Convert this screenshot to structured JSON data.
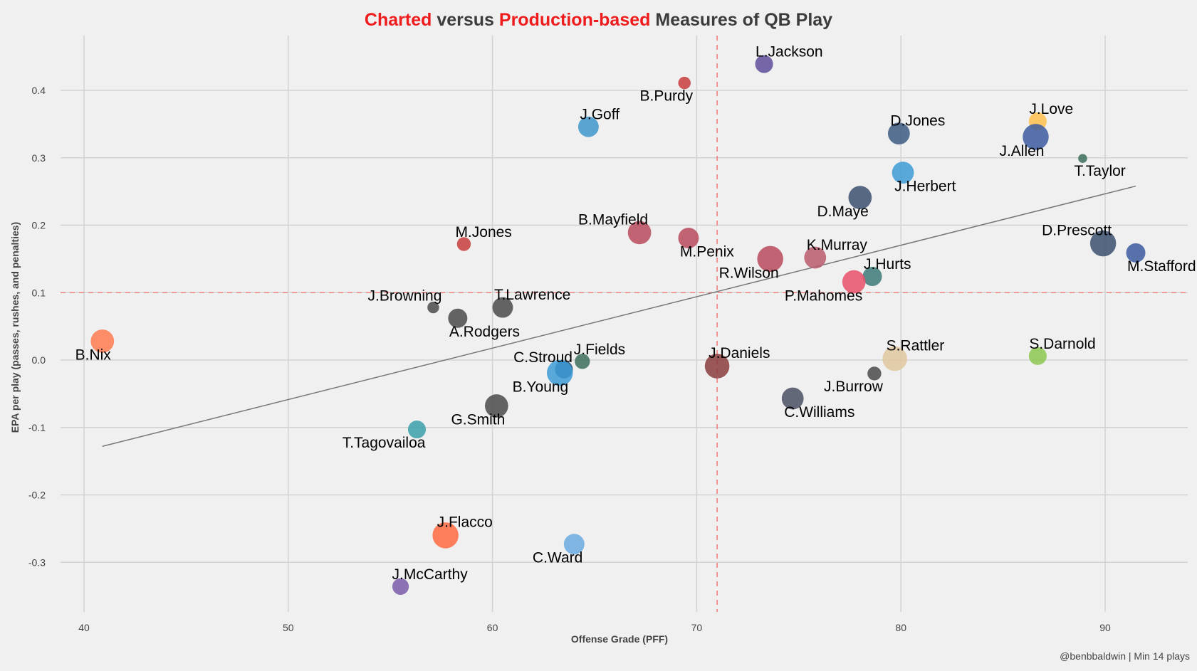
{
  "chart_data": {
    "type": "scatter",
    "title_parts": [
      {
        "text": "Charted",
        "highlight": true
      },
      {
        "text": " versus ",
        "highlight": false
      },
      {
        "text": "Production-based",
        "highlight": true
      },
      {
        "text": " Measures of QB Play",
        "highlight": false
      }
    ],
    "xlabel": "Offense Grade (PFF)",
    "ylabel": "EPA per play (passes, rushes, and penalties)",
    "caption": "@benbbaldwin | Min 14 plays",
    "xlim": [
      38.7,
      94.5
    ],
    "ylim": [
      -0.37,
      0.475
    ],
    "xticks": [
      40,
      50,
      60,
      70,
      80,
      90
    ],
    "yticks": [
      0.4,
      0.3,
      0.2,
      0.1,
      0.0,
      -0.1,
      -0.2,
      -0.3
    ],
    "ytick_labels": [
      "0.4",
      "0.3",
      "0.2",
      "0.1",
      "0.0",
      "-0.1",
      "-0.2",
      "-0.3"
    ],
    "grid": true,
    "reference_lines": {
      "x_mean": 71.0,
      "y_mean": 0.1,
      "color": "#f08080"
    },
    "trend_line": {
      "x": [
        40.9,
        91.5
      ],
      "y": [
        -0.128,
        0.258
      ],
      "color": "#777777"
    },
    "colors": {
      "highlight": "#ee1c1c",
      "text": "#3c3c3c",
      "background": "#f0f0f0"
    },
    "points": [
      {
        "name": "L.Jackson",
        "x": 73.3,
        "y": 0.439,
        "size": 0.45,
        "color": "#5e4e9a"
      },
      {
        "name": "B.Purdy",
        "x": 69.4,
        "y": 0.411,
        "size": 0.25,
        "color": "#c83c3c"
      },
      {
        "name": "J.Goff",
        "x": 64.7,
        "y": 0.346,
        "size": 0.55,
        "color": "#3f96cc"
      },
      {
        "name": "D.Jones",
        "x": 79.9,
        "y": 0.336,
        "size": 0.6,
        "color": "#3c5a82"
      },
      {
        "name": "J.Love",
        "x": 86.7,
        "y": 0.354,
        "size": 0.45,
        "color": "#ffc04c"
      },
      {
        "name": "J.Allen",
        "x": 86.6,
        "y": 0.331,
        "size": 0.75,
        "color": "#3c5aa0"
      },
      {
        "name": "T.Taylor",
        "x": 88.9,
        "y": 0.299,
        "size": 0.12,
        "color": "#3c6e5a"
      },
      {
        "name": "J.Herbert",
        "x": 80.1,
        "y": 0.278,
        "size": 0.6,
        "color": "#3d9bd6"
      },
      {
        "name": "D.Maye",
        "x": 78.0,
        "y": 0.241,
        "size": 0.65,
        "color": "#3c5070"
      },
      {
        "name": "B.Mayfield",
        "x": 67.2,
        "y": 0.189,
        "size": 0.65,
        "color": "#b84a5c"
      },
      {
        "name": "M.Penix",
        "x": 69.6,
        "y": 0.181,
        "size": 0.55,
        "color": "#b84a5c"
      },
      {
        "name": "M.Jones",
        "x": 58.6,
        "y": 0.172,
        "size": 0.3,
        "color": "#c83c3c"
      },
      {
        "name": "D.Prescott",
        "x": 89.9,
        "y": 0.173,
        "size": 0.75,
        "color": "#3c5070"
      },
      {
        "name": "M.Stafford",
        "x": 91.5,
        "y": 0.159,
        "size": 0.5,
        "color": "#3c5aa0"
      },
      {
        "name": "R.Wilson",
        "x": 73.6,
        "y": 0.15,
        "size": 0.75,
        "color": "#b84a5c"
      },
      {
        "name": "K.Murray",
        "x": 75.8,
        "y": 0.152,
        "size": 0.6,
        "color": "#b85a6c"
      },
      {
        "name": "J.Hurts",
        "x": 78.6,
        "y": 0.124,
        "size": 0.5,
        "color": "#3c7a78"
      },
      {
        "name": "P.Mahomes",
        "x": 77.7,
        "y": 0.116,
        "size": 0.65,
        "color": "#e8506a"
      },
      {
        "name": "J.Browning",
        "x": 57.1,
        "y": 0.078,
        "size": 0.22,
        "color": "#4a4a4a"
      },
      {
        "name": "A.Rodgers",
        "x": 58.3,
        "y": 0.062,
        "size": 0.5,
        "color": "#4a4a4a"
      },
      {
        "name": "T.Lawrence",
        "x": 60.5,
        "y": 0.078,
        "size": 0.55,
        "color": "#4a4a4a"
      },
      {
        "name": "B.Nix",
        "x": 40.9,
        "y": 0.028,
        "size": 0.65,
        "color": "#ff7a50"
      },
      {
        "name": "J.Fields",
        "x": 64.4,
        "y": -0.002,
        "size": 0.35,
        "color": "#3c6e5a"
      },
      {
        "name": "C.Stroud",
        "x": 63.5,
        "y": -0.014,
        "size": 0.45,
        "color": "#1a4a6e"
      },
      {
        "name": "B.Young",
        "x": 63.3,
        "y": -0.019,
        "size": 0.75,
        "color": "#3d9bd6"
      },
      {
        "name": "J.Daniels",
        "x": 71.0,
        "y": -0.009,
        "size": 0.7,
        "color": "#8a3c3c"
      },
      {
        "name": "S.Rattler",
        "x": 79.7,
        "y": 0.002,
        "size": 0.7,
        "color": "#e0c8a0"
      },
      {
        "name": "S.Darnold",
        "x": 86.7,
        "y": 0.006,
        "size": 0.45,
        "color": "#8cc850"
      },
      {
        "name": "J.Burrow",
        "x": 78.7,
        "y": -0.02,
        "size": 0.3,
        "color": "#4a4a4a"
      },
      {
        "name": "C.Williams",
        "x": 74.7,
        "y": -0.057,
        "size": 0.6,
        "color": "#4a5064"
      },
      {
        "name": "G.Smith",
        "x": 60.2,
        "y": -0.068,
        "size": 0.65,
        "color": "#4a4a4a"
      },
      {
        "name": "T.Tagovailoa",
        "x": 56.3,
        "y": -0.103,
        "size": 0.45,
        "color": "#3aa0aa"
      },
      {
        "name": "J.Flacco",
        "x": 57.7,
        "y": -0.26,
        "size": 0.75,
        "color": "#ff6a40"
      },
      {
        "name": "C.Ward",
        "x": 64.0,
        "y": -0.273,
        "size": 0.55,
        "color": "#6aaae0"
      },
      {
        "name": "J.McCarthy",
        "x": 55.5,
        "y": -0.336,
        "size": 0.4,
        "color": "#7a5aaa"
      }
    ],
    "label_offsets_note": "label placement relative to point",
    "label_positions": {
      "L.Jackson": "above-right",
      "B.Purdy": "below-left",
      "J.Goff": "above-right",
      "D.Jones": "above-right",
      "J.Love": "above-right",
      "J.Allen": "below-left",
      "T.Taylor": "below-right",
      "J.Herbert": "below-right",
      "D.Maye": "below-left",
      "B.Mayfield": "above-left",
      "M.Penix": "below-right",
      "M.Jones": "above-right",
      "D.Prescott": "above-left",
      "M.Stafford": "below-right",
      "R.Wilson": "below-left",
      "K.Murray": "above-right",
      "J.Hurts": "above-right",
      "P.Mahomes": "below-left",
      "J.Browning": "above-left",
      "A.Rodgers": "below-right",
      "T.Lawrence": "above-right",
      "B.Nix": "below-left",
      "J.Fields": "above-right",
      "C.Stroud": "above-left",
      "B.Young": "below-left",
      "J.Daniels": "above-right",
      "S.Rattler": "above-right",
      "S.Darnold": "above-right",
      "J.Burrow": "below-left",
      "C.Williams": "below-right",
      "G.Smith": "below-left",
      "T.Tagovailoa": "below-left",
      "J.Flacco": "above-right",
      "C.Ward": "below-left",
      "J.McCarthy": "above-right"
    }
  }
}
